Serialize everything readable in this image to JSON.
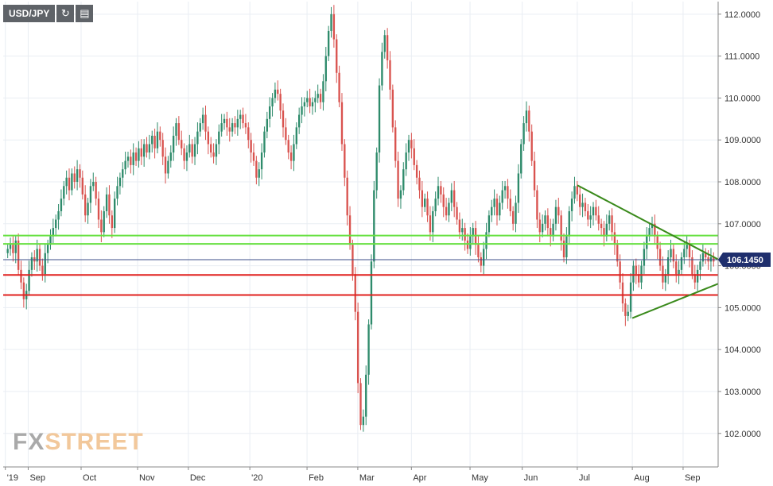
{
  "toolbar": {
    "symbol": "USD/JPY",
    "refresh_icon": "refresh-icon",
    "indicators_icon": "indicators-icon"
  },
  "watermark": {
    "part1": "FX",
    "part2": "STREET"
  },
  "colors": {
    "up": "#2e8b6b",
    "down": "#d9534f",
    "grid": "#e9edf3",
    "support_red": "#e0201e",
    "resistance_green": "#66e040",
    "triangle": "#3a8a1c",
    "current_line": "#3d4f8a",
    "price_tag_bg": "#1f2f6d"
  },
  "chart_data": {
    "type": "candlestick",
    "symbol": "USD/JPY",
    "ylim": [
      101.2,
      112.3
    ],
    "y_ticks": [
      "112.0000",
      "111.0000",
      "110.0000",
      "109.0000",
      "108.0000",
      "107.0000",
      "106.0000",
      "105.0000",
      "104.0000",
      "103.0000",
      "102.0000"
    ],
    "x_ticks": [
      "'19",
      "Sep",
      "Oct",
      "Nov",
      "Dec",
      "'20",
      "Feb",
      "Mar",
      "Apr",
      "May",
      "Jun",
      "Jul",
      "Aug",
      "Sep"
    ],
    "current_price": "106.1450",
    "closes": [
      106.4,
      106.5,
      106.3,
      106.6,
      105.9,
      105.6,
      105.2,
      105.4,
      105.9,
      106.2,
      106.1,
      106.4,
      106.0,
      105.8,
      106.3,
      106.5,
      106.7,
      106.9,
      107.1,
      107.3,
      107.6,
      107.9,
      108.1,
      107.8,
      108.2,
      108.0,
      108.3,
      108.1,
      107.7,
      107.2,
      107.5,
      107.9,
      108.0,
      107.6,
      107.1,
      106.8,
      107.3,
      107.7,
      107.2,
      106.9,
      107.6,
      107.9,
      108.1,
      108.3,
      108.5,
      108.6,
      108.4,
      108.7,
      108.5,
      108.8,
      108.6,
      108.9,
      108.7,
      108.9,
      109.1,
      108.8,
      109.2,
      109.0,
      108.6,
      108.2,
      108.5,
      108.7,
      109.1,
      109.4,
      109.0,
      108.8,
      108.5,
      108.7,
      108.9,
      108.6,
      108.9,
      109.2,
      109.4,
      109.6,
      109.2,
      108.9,
      108.7,
      108.6,
      108.9,
      109.2,
      109.4,
      109.5,
      109.3,
      109.2,
      109.4,
      109.3,
      109.5,
      109.6,
      109.4,
      109.3,
      109.0,
      108.7,
      108.5,
      108.1,
      108.3,
      108.7,
      109.2,
      109.5,
      109.8,
      110.0,
      110.2,
      110.1,
      109.7,
      109.3,
      109.0,
      108.7,
      108.5,
      108.9,
      109.3,
      109.6,
      109.8,
      109.9,
      110.0,
      109.8,
      109.9,
      110.0,
      110.1,
      109.9,
      110.4,
      111.0,
      111.6,
      112.0,
      111.4,
      110.6,
      109.9,
      108.9,
      108.1,
      107.2,
      106.5,
      105.8,
      104.9,
      103.2,
      102.2,
      102.4,
      103.4,
      104.6,
      106.1,
      107.8,
      108.7,
      110.3,
      111.1,
      111.5,
      110.9,
      110.2,
      109.3,
      108.5,
      107.6,
      107.8,
      108.3,
      108.7,
      109.0,
      108.8,
      108.4,
      108.1,
      107.8,
      107.4,
      107.6,
      107.2,
      106.8,
      107.3,
      107.6,
      107.9,
      107.7,
      107.4,
      107.2,
      107.5,
      107.8,
      107.4,
      107.1,
      106.8,
      106.9,
      106.6,
      106.4,
      106.7,
      106.9,
      106.5,
      106.2,
      106.0,
      106.4,
      106.8,
      107.2,
      107.4,
      107.6,
      107.2,
      107.5,
      107.8,
      107.9,
      107.6,
      107.3,
      107.0,
      107.5,
      108.2,
      108.9,
      109.4,
      109.7,
      109.2,
      108.5,
      107.8,
      107.1,
      106.8,
      107.0,
      107.2,
      106.9,
      106.7,
      107.0,
      107.4,
      107.2,
      106.6,
      106.2,
      106.7,
      107.3,
      107.6,
      107.9,
      107.7,
      107.4,
      107.5,
      107.3,
      107.1,
      107.2,
      107.4,
      107.2,
      107.0,
      106.9,
      106.7,
      107.0,
      107.2,
      106.8,
      106.5,
      106.1,
      105.6,
      105.1,
      104.8,
      104.9,
      105.6,
      106.0,
      105.8,
      105.6,
      106.0,
      106.4,
      106.7,
      106.9,
      107.0,
      106.7,
      106.4,
      106.0,
      105.6,
      105.8,
      106.2,
      106.4,
      106.1,
      105.8,
      105.9,
      106.2,
      106.4,
      106.5,
      106.2,
      105.8,
      105.6,
      105.9,
      106.1,
      106.3,
      106.2,
      106.1,
      106.2,
      106.1
    ],
    "annotations": {
      "horizontal_lines": [
        {
          "kind": "resistance",
          "color": "green",
          "price": 106.72
        },
        {
          "kind": "resistance",
          "color": "green",
          "price": 106.52
        },
        {
          "kind": "support",
          "color": "red",
          "price": 105.78
        },
        {
          "kind": "support",
          "color": "red",
          "price": 105.3
        }
      ],
      "triangle": {
        "upper": [
          [
            0.803,
            107.92
          ],
          [
            1.0,
            106.15
          ]
        ],
        "lower": [
          [
            0.88,
            104.75
          ],
          [
            1.0,
            105.57
          ]
        ]
      }
    },
    "grid": true
  }
}
